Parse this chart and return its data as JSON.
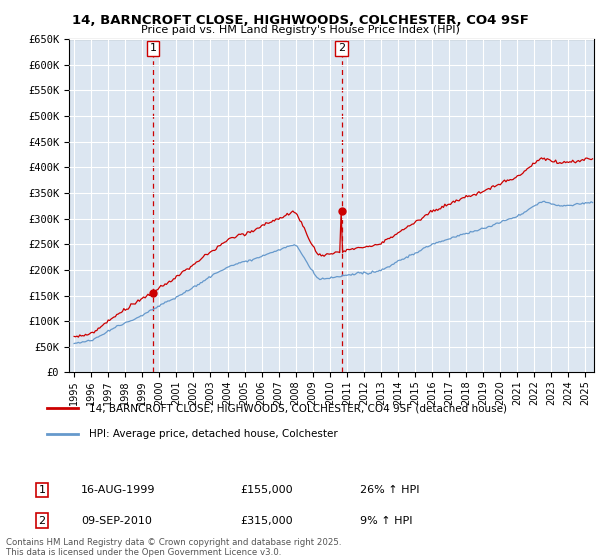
{
  "title": "14, BARNCROFT CLOSE, HIGHWOODS, COLCHESTER, CO4 9SF",
  "subtitle": "Price paid vs. HM Land Registry's House Price Index (HPI)",
  "ylim": [
    0,
    650000
  ],
  "xlim_start": 1994.7,
  "xlim_end": 2025.5,
  "sale1_year": 1999.62,
  "sale1_price": 155000,
  "sale2_year": 2010.69,
  "sale2_price": 315000,
  "line_color_property": "#cc0000",
  "line_color_hpi": "#6699cc",
  "plot_bg": "#dce6f1",
  "grid_color": "#ffffff",
  "legend_label_property": "14, BARNCROFT CLOSE, HIGHWOODS, COLCHESTER, CO4 9SF (detached house)",
  "legend_label_hpi": "HPI: Average price, detached house, Colchester",
  "footer": "Contains HM Land Registry data © Crown copyright and database right 2025.\nThis data is licensed under the Open Government Licence v3.0."
}
